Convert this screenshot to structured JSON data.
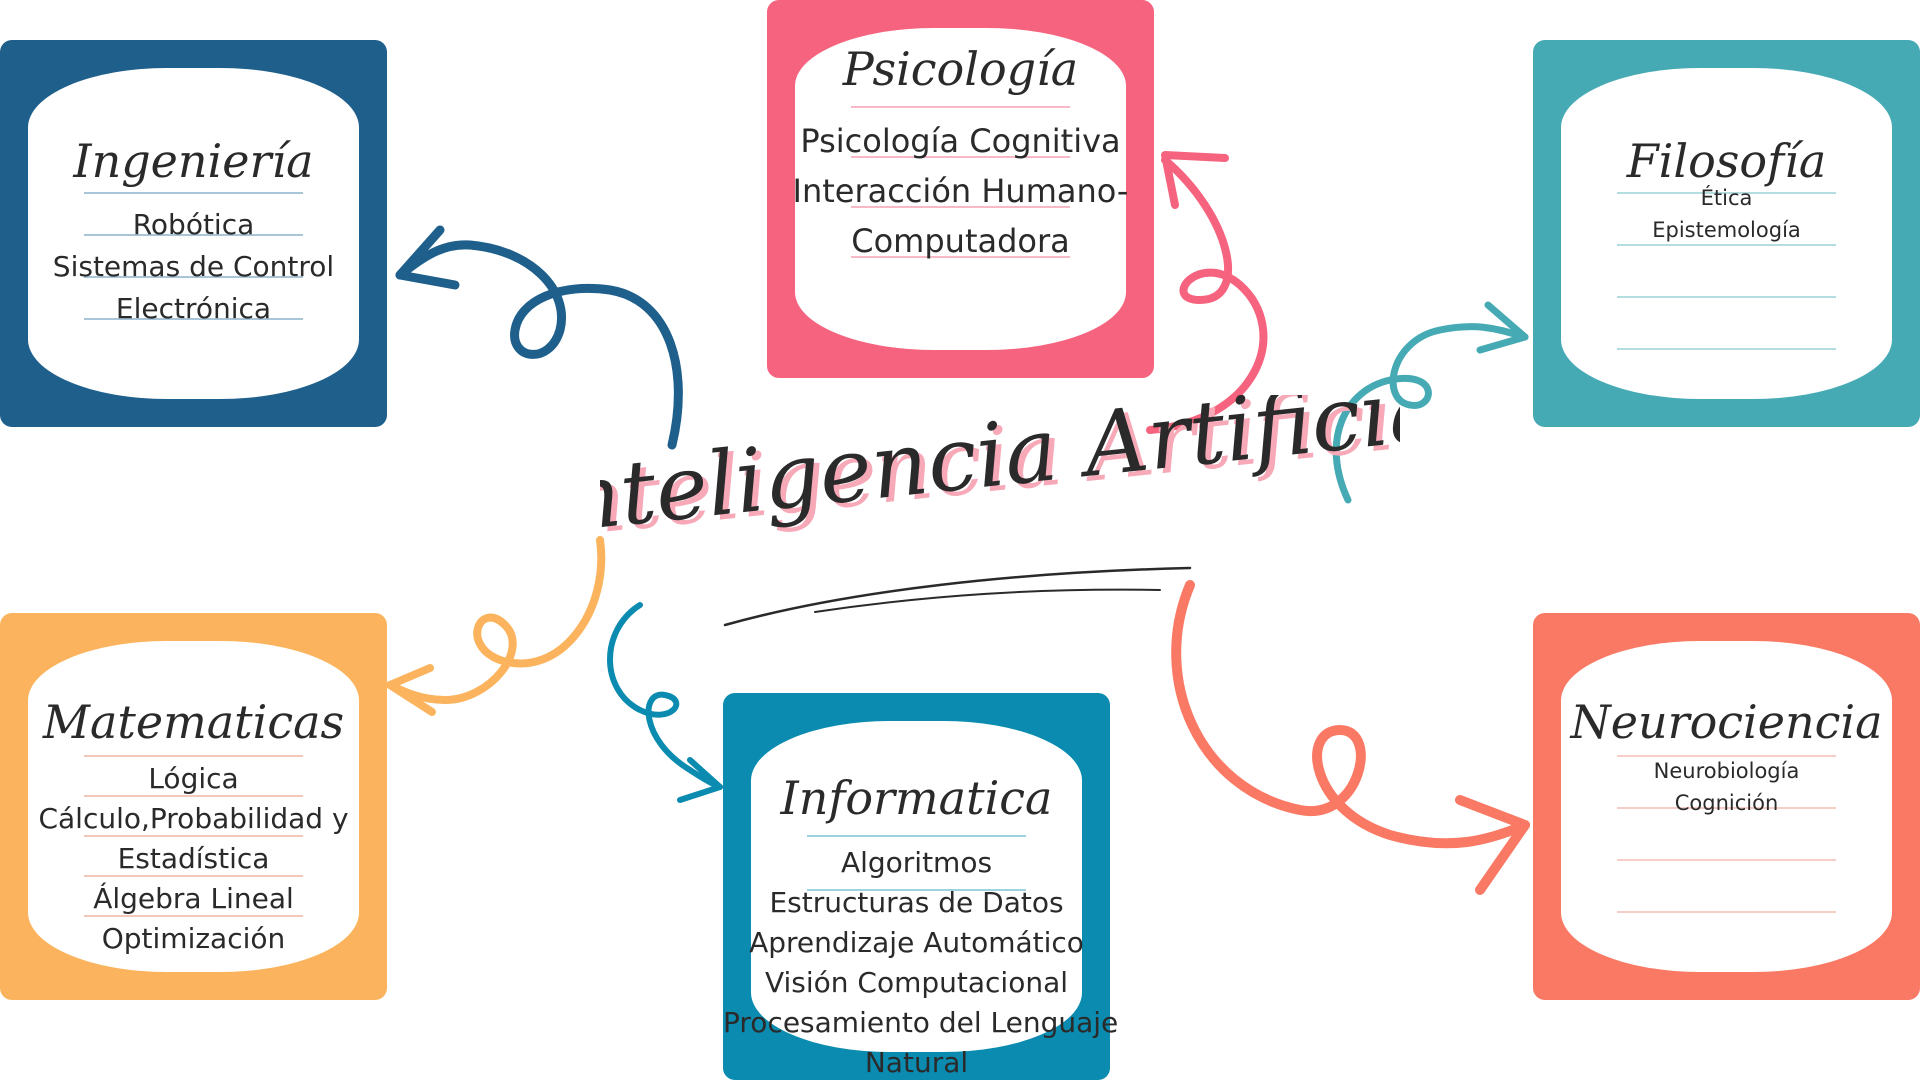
{
  "main_title": "Inteligencia Artificial",
  "colors": {
    "ingenieria": "#1e5f8c",
    "psicologia": "#f6637e",
    "filosofia": "#45aab3",
    "matematicas": "#fbb45d",
    "informatica": "#0b8bb0",
    "neurociencia": "#f97964",
    "title_shadow": "#f7a9b8"
  },
  "cards": {
    "ingenieria": {
      "title": "Ingeniería",
      "items": [
        "Robótica",
        "Sistemas de Control",
        "Electrónica"
      ]
    },
    "psicologia": {
      "title": "Psicología",
      "items": [
        "Psicología Cognitiva",
        "Interacción Humano-",
        "Computadora"
      ]
    },
    "filosofia": {
      "title": "Filosofía",
      "items": [
        "Ética",
        "Epistemología"
      ]
    },
    "matematicas": {
      "title": "Matematicas",
      "items": [
        "Lógica",
        "Cálculo,Probabilidad y",
        "Estadística",
        "Álgebra Lineal",
        "Optimización"
      ]
    },
    "informatica": {
      "title": "Informatica",
      "items": [
        "Algoritmos",
        "Estructuras de Datos",
        "Aprendizaje Automático",
        "Visión Computacional",
        "Procesamiento del Lenguaje",
        "Natural"
      ]
    },
    "neurociencia": {
      "title": "Neurociencia",
      "items": [
        "Neurobiología",
        "Cognición"
      ]
    }
  }
}
